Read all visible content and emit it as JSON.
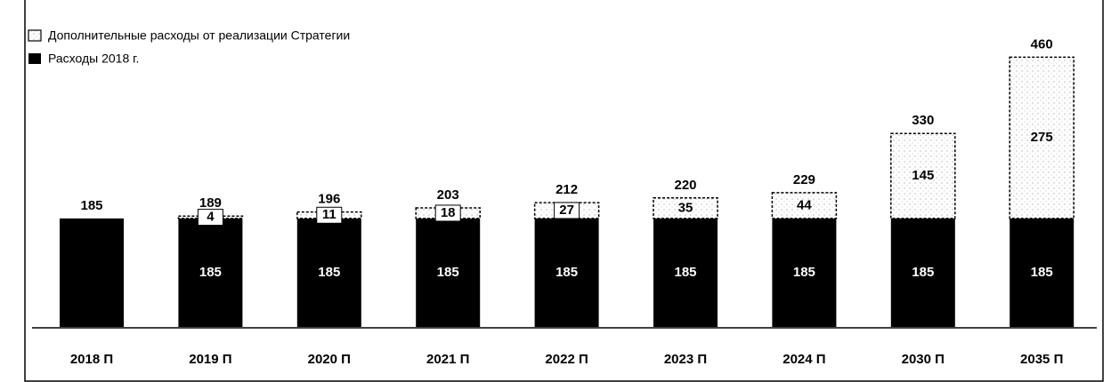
{
  "chart_data": {
    "type": "stacked_bar",
    "categories": [
      "2018 П",
      "2019 П",
      "2020 П",
      "2021 П",
      "2022 П",
      "2023 П",
      "2024 П",
      "2030 П",
      "2035 П"
    ],
    "series": [
      {
        "name": "Расходы 2018 г.",
        "color": "#000000",
        "values": [
          185,
          185,
          185,
          185,
          185,
          185,
          185,
          185,
          185
        ]
      },
      {
        "name": "Дополнительные расходы от реализации Стратегии",
        "color": "#ffffff",
        "values": [
          null,
          4,
          11,
          18,
          27,
          35,
          44,
          145,
          275
        ]
      }
    ],
    "totals": [
      185,
      189,
      196,
      203,
      212,
      220,
      229,
      330,
      460
    ],
    "legend": "upper left"
  }
}
